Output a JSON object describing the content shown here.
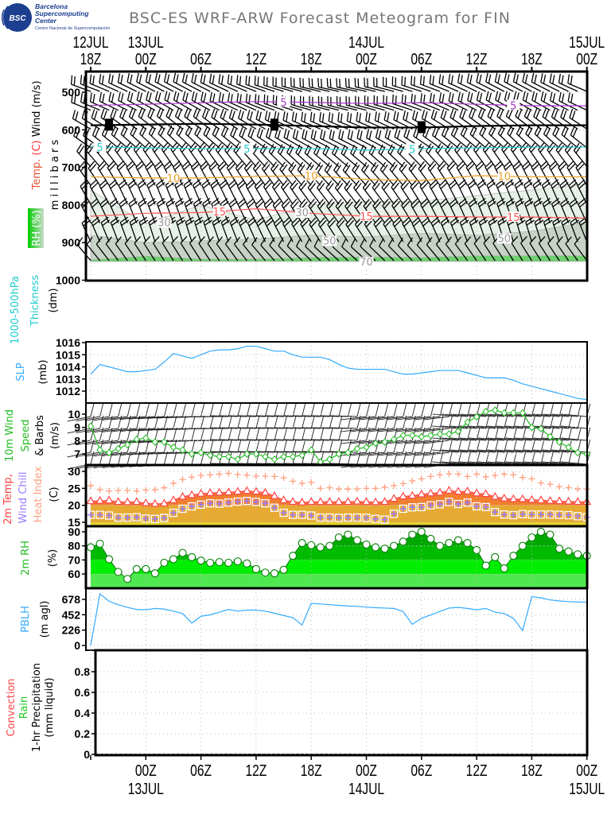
{
  "header": {
    "title": "BSC-ES WRF-ARW Forecast Meteogram for FIN",
    "logo": {
      "mark": "BSC",
      "line1": "Barcelona",
      "line2": "Supercomputing",
      "line3": "Center",
      "line4": "Centro Nacional de Supercomputación"
    }
  },
  "time_axis": {
    "ticks": [
      {
        "hour_offset": 0,
        "hour": "18Z",
        "date": "12JUL"
      },
      {
        "hour_offset": 6,
        "hour": "00Z",
        "date": "13JUL"
      },
      {
        "hour_offset": 12,
        "hour": "06Z",
        "date": ""
      },
      {
        "hour_offset": 18,
        "hour": "12Z",
        "date": ""
      },
      {
        "hour_offset": 24,
        "hour": "18Z",
        "date": ""
      },
      {
        "hour_offset": 30,
        "hour": "00Z",
        "date": "14JUL"
      },
      {
        "hour_offset": 36,
        "hour": "06Z",
        "date": ""
      },
      {
        "hour_offset": 42,
        "hour": "12Z",
        "date": ""
      },
      {
        "hour_offset": 48,
        "hour": "18Z",
        "date": ""
      },
      {
        "hour_offset": 54,
        "hour": "00Z",
        "date": "15JUL"
      }
    ]
  },
  "labels": {
    "upper": {
      "temp": "Temp.",
      "c": "(C)",
      "wind": "Wind (m/s)",
      "millibars": "m i l l i b a r s",
      "rh": "RH (%)"
    },
    "thickness": {
      "l1": "1000-500hPa",
      "l2": "Thickness",
      "l3": "(dm)"
    },
    "slp": {
      "l1": "SLP",
      "l2": "(mb)"
    },
    "wind10": {
      "l1": "10m Wind",
      "l2": "Speed",
      "l3": "& Barbs",
      "l4": "(m/s)"
    },
    "temp2m": {
      "l1": "2m Temp,",
      "l2": "Wind Chill",
      "l3": "Heat Index",
      "l4": "(C)"
    },
    "rh2m": {
      "l1": "2m RH",
      "l2": "(%)"
    },
    "pblh": {
      "l1": "PBLH",
      "l2": "(m agl)"
    },
    "precip": {
      "l1": "Convection",
      "l2": "Rain",
      "l3": "1-hr Precipitation",
      "l4": "(mm liquid)"
    }
  },
  "colors": {
    "slp": "#33aaff",
    "wind10": "#22bb22",
    "temp": "#ff4444",
    "chill": "#9b7bff",
    "heat": "#ff9f7f",
    "pblh": "#33aaff",
    "rh_line": "#118811"
  },
  "chart_data": [
    {
      "type": "contour",
      "name": "upper_air",
      "ylabel": "millibars",
      "ylim": [
        450,
        1000
      ],
      "yticks": [
        500,
        600,
        700,
        800,
        900,
        1000
      ],
      "hours_6h": [
        0,
        6,
        12,
        18,
        24,
        30,
        36,
        42,
        48,
        54
      ],
      "wind_levels": [
        500,
        550,
        600,
        650,
        700,
        750,
        800,
        850,
        900,
        950
      ],
      "wind_speed_ms": [
        12,
        12,
        10,
        10,
        10,
        12,
        12,
        12,
        10,
        7
      ],
      "wind_dir_deg": [
        290,
        292,
        300,
        305,
        318,
        325,
        330,
        332,
        335,
        320
      ],
      "temp_contours": [
        {
          "value": -5,
          "label": "5",
          "color": "#aa33cc",
          "pressure": [
            535,
            532,
            528,
            525,
            527,
            530,
            528,
            532,
            536,
            536
          ],
          "label_hours": [
            21,
            46
          ]
        },
        {
          "value": 0,
          "label": "0",
          "color": "#000000",
          "pressure": [
            588,
            586,
            584,
            586,
            590,
            594,
            594,
            590,
            588,
            588
          ],
          "label_hours": [
            2,
            20,
            36
          ]
        },
        {
          "value": 5,
          "label": "5",
          "color": "#22cccc",
          "pressure": [
            645,
            648,
            650,
            650,
            650,
            654,
            650,
            648,
            646,
            646
          ],
          "label_hours": [
            1,
            17,
            35
          ]
        },
        {
          "value": 10,
          "label": "10",
          "color": "#e8a020",
          "pressure": [
            725,
            728,
            728,
            724,
            722,
            732,
            735,
            722,
            725,
            725
          ],
          "label_hours": [
            9,
            24,
            45
          ]
        },
        {
          "value": 15,
          "label": "15",
          "color": "#ff5555",
          "pressure": [
            830,
            822,
            820,
            810,
            822,
            830,
            830,
            832,
            832,
            835
          ],
          "label_hours": [
            14,
            30,
            46
          ]
        }
      ],
      "rh_shading": [
        {
          "level": 30,
          "label": "30",
          "color": "#e6f0e6",
          "pressure": [
            760,
            850,
            800,
            840,
            800,
            790,
            790,
            775,
            760,
            745
          ],
          "label_hours": [
            8,
            23
          ]
        },
        {
          "level": 50,
          "label": "50",
          "color": "#c6d3c6",
          "pressure": [
            880,
            900,
            895,
            890,
            880,
            885,
            875,
            880,
            870,
            845
          ],
          "label_hours": [
            26,
            45
          ]
        },
        {
          "level": 70,
          "label": "70",
          "color": "#70d070",
          "pressure": [
            946,
            936,
            944,
            944,
            940,
            938,
            940,
            935,
            935,
            935
          ],
          "label_hours": [
            30
          ]
        }
      ]
    },
    {
      "type": "line",
      "name": "slp",
      "ylabel": "SLP (mb)",
      "ylim": [
        1011,
        1016
      ],
      "yticks": [
        1012,
        1013,
        1014,
        1015,
        1016
      ],
      "values": [
        1013.4,
        1014.2,
        1014.0,
        1013.8,
        1013.6,
        1013.6,
        1013.7,
        1013.8,
        1014.4,
        1015.1,
        1014.9,
        1014.7,
        1015.0,
        1015.3,
        1015.4,
        1015.4,
        1015.5,
        1015.7,
        1015.7,
        1015.5,
        1015.3,
        1015.3,
        1015.0,
        1014.8,
        1014.8,
        1014.8,
        1014.6,
        1014.2,
        1013.9,
        1013.8,
        1013.8,
        1013.8,
        1013.8,
        1013.6,
        1013.4,
        1013.4,
        1013.5,
        1013.6,
        1013.7,
        1013.7,
        1013.7,
        1013.5,
        1013.3,
        1013.1,
        1013.1,
        1013.1,
        1012.9,
        1012.6,
        1012.4,
        1012.2,
        1012.0,
        1011.8,
        1011.6,
        1011.4,
        1011.3
      ]
    },
    {
      "type": "line",
      "name": "wind10m",
      "ylabel": "10m Wind Speed (m/s)",
      "ylim": [
        6.2,
        10.9
      ],
      "yticks": [
        7,
        8,
        9,
        10
      ],
      "values": [
        9.1,
        7.3,
        7.1,
        7.4,
        7.7,
        8.1,
        8.2,
        7.9,
        7.9,
        7.5,
        7.3,
        7.0,
        7.1,
        6.9,
        6.8,
        6.8,
        6.6,
        7.0,
        7.0,
        6.8,
        6.6,
        6.8,
        6.8,
        6.9,
        7.3,
        6.4,
        6.6,
        7.0,
        7.1,
        7.4,
        7.5,
        7.8,
        7.9,
        8.1,
        8.4,
        8.4,
        8.3,
        8.4,
        8.5,
        8.5,
        8.7,
        9.4,
        9.8,
        10.2,
        10.3,
        10.1,
        10.1,
        10.1,
        9.0,
        8.9,
        8.3,
        7.9,
        7.5,
        7.1,
        7.0
      ]
    },
    {
      "type": "line",
      "name": "temp2m",
      "ylabel": "(C)",
      "ylim": [
        14,
        31.5
      ],
      "yticks": [
        15,
        20,
        25,
        30
      ],
      "series": [
        {
          "name": "2m Temp",
          "values": [
            21.2,
            21.3,
            21.4,
            21.0,
            20.9,
            21.0,
            20.6,
            20.4,
            20.5,
            21.5,
            22.5,
            23.0,
            23.4,
            23.6,
            23.7,
            23.8,
            24.0,
            24.2,
            24.0,
            23.7,
            22.7,
            21.5,
            21.0,
            20.8,
            21.0,
            21.0,
            21.0,
            21.0,
            21.0,
            21.1,
            21.0,
            20.9,
            21.0,
            21.9,
            22.6,
            22.8,
            23.2,
            23.5,
            23.7,
            24.3,
            24.0,
            24.1,
            23.5,
            23.3,
            22.5,
            22.0,
            21.8,
            21.8,
            21.6,
            21.5,
            21.3,
            21.2,
            21.1,
            21.0,
            21.0
          ]
        },
        {
          "name": "Wind Chill",
          "values": [
            17.2,
            17.2,
            17.0,
            16.4,
            16.4,
            16.5,
            16.1,
            16.0,
            16.3,
            17.8,
            19.0,
            19.7,
            20.2,
            20.6,
            20.5,
            20.8,
            21.1,
            21.3,
            21.0,
            20.6,
            19.3,
            17.8,
            17.2,
            17.2,
            17.0,
            16.4,
            16.4,
            16.3,
            16.4,
            16.4,
            16.3,
            16.0,
            15.8,
            17.5,
            19.0,
            19.4,
            19.5,
            20.0,
            20.3,
            21.0,
            20.4,
            20.8,
            19.7,
            19.5,
            18.0,
            17.3,
            17.1,
            17.4,
            17.3,
            17.3,
            17.3,
            17.2,
            17.1,
            16.8,
            16.5
          ]
        },
        {
          "name": "Heat Index",
          "values": [
            25.8,
            24.6,
            24.2,
            24.4,
            24.4,
            24.2,
            24.5,
            24.6,
            25.2,
            26.5,
            27.6,
            28.3,
            28.8,
            29.0,
            29.2,
            29.4,
            29.1,
            28.9,
            28.6,
            28.6,
            28.5,
            28.1,
            27.1,
            26.5,
            26.8,
            25.0,
            25.2,
            24.8,
            24.8,
            24.8,
            25.0,
            25.0,
            25.3,
            25.8,
            26.4,
            27.2,
            27.8,
            28.5,
            29.0,
            29.3,
            29.2,
            28.5,
            29.2,
            28.4,
            28.8,
            29.2,
            29.0,
            28.2,
            27.8,
            26.6,
            26.2,
            25.5,
            25.2,
            24.8,
            24.8
          ]
        }
      ]
    },
    {
      "type": "area",
      "name": "rh2m",
      "ylabel": "2m RH (%)",
      "ylim": [
        50,
        92
      ],
      "yticks": [
        60,
        70,
        80,
        90
      ],
      "values": [
        79,
        81.5,
        70.5,
        61.5,
        56.5,
        63.5,
        63.5,
        60.5,
        68,
        70.5,
        75,
        72,
        69.5,
        68,
        68.5,
        68,
        69,
        67.5,
        63.5,
        61,
        60.5,
        63,
        73,
        82,
        80.5,
        79,
        80,
        86,
        88,
        84,
        81,
        79,
        78,
        80,
        83,
        88,
        90,
        85,
        80,
        82,
        84,
        82,
        77,
        66,
        72,
        64,
        73,
        80,
        86,
        90,
        88,
        78,
        76,
        74,
        73
      ]
    },
    {
      "type": "line",
      "name": "pblh",
      "ylabel": "PBLH (m agl)",
      "ylim": [
        0,
        800
      ],
      "yticks": [
        0,
        226,
        452,
        678
      ],
      "values": [
        0,
        760,
        650,
        600,
        560,
        530,
        525,
        545,
        535,
        505,
        470,
        330,
        430,
        450,
        490,
        530,
        505,
        520,
        520,
        505,
        475,
        440,
        410,
        300,
        620,
        610,
        600,
        590,
        580,
        575,
        565,
        555,
        550,
        545,
        500,
        310,
        400,
        450,
        500,
        550,
        560,
        545,
        525,
        545,
        490,
        470,
        400,
        220,
        720,
        700,
        670,
        655,
        645,
        640,
        635
      ]
    },
    {
      "type": "bar",
      "name": "precip",
      "ylabel": "1-hr Precipitation (mm liquid)",
      "ylim": [
        0,
        1
      ],
      "yticks": [
        0,
        0.2,
        0.4,
        0.6,
        0.8
      ],
      "yticklabels": [
        "0",
        "0.2",
        "0.4",
        "0.6",
        "0.8"
      ],
      "series": [
        {
          "name": "Convection",
          "values": []
        },
        {
          "name": "Rain",
          "values": []
        }
      ]
    }
  ]
}
